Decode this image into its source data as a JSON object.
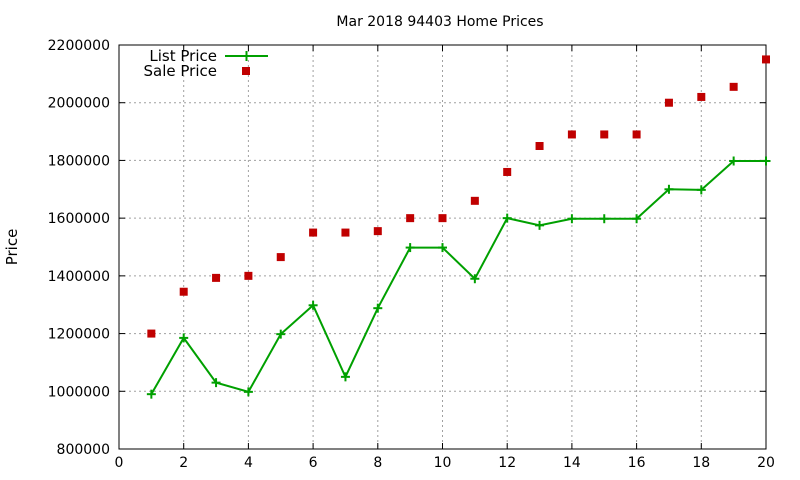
{
  "chart_data": {
    "type": "line",
    "title": "Mar 2018 94403 Home Prices",
    "xlabel": "",
    "ylabel": "Price",
    "xlim": [
      0,
      20
    ],
    "ylim": [
      800000,
      2200000
    ],
    "xticks": [
      0,
      2,
      4,
      6,
      8,
      10,
      12,
      14,
      16,
      18,
      20
    ],
    "yticks": [
      800000,
      1000000,
      1200000,
      1400000,
      1600000,
      1800000,
      2000000,
      2200000
    ],
    "grid": true,
    "legend_position": "top-left",
    "series": [
      {
        "name": "List Price",
        "style": "line-plus",
        "color": "#00a000",
        "points": [
          [
            1,
            990000
          ],
          [
            2,
            1185000
          ],
          [
            3,
            1030000
          ],
          [
            4,
            998000
          ],
          [
            5,
            1198000
          ],
          [
            6,
            1298000
          ],
          [
            7,
            1050000
          ],
          [
            8,
            1288000
          ],
          [
            9,
            1498000
          ],
          [
            10,
            1498000
          ],
          [
            11,
            1390000
          ],
          [
            12,
            1600000
          ],
          [
            13,
            1575000
          ],
          [
            14,
            1598000
          ],
          [
            15,
            1598000
          ],
          [
            16,
            1598000
          ],
          [
            17,
            1700000
          ],
          [
            18,
            1698000
          ],
          [
            19,
            1798000
          ],
          [
            20,
            1798000
          ]
        ]
      },
      {
        "name": "Sale Price",
        "style": "square",
        "color": "#c00000",
        "points": [
          [
            1,
            1200000
          ],
          [
            2,
            1345000
          ],
          [
            3,
            1393000
          ],
          [
            4,
            1400000
          ],
          [
            5,
            1465000
          ],
          [
            6,
            1550000
          ],
          [
            7,
            1550000
          ],
          [
            8,
            1555000
          ],
          [
            9,
            1600000
          ],
          [
            10,
            1600000
          ],
          [
            11,
            1660000
          ],
          [
            12,
            1760000
          ],
          [
            13,
            1850000
          ],
          [
            14,
            1890000
          ],
          [
            15,
            1890000
          ],
          [
            16,
            1890000
          ],
          [
            17,
            2000000
          ],
          [
            18,
            2020000
          ],
          [
            19,
            2055000
          ],
          [
            20,
            2150000
          ]
        ]
      }
    ]
  }
}
